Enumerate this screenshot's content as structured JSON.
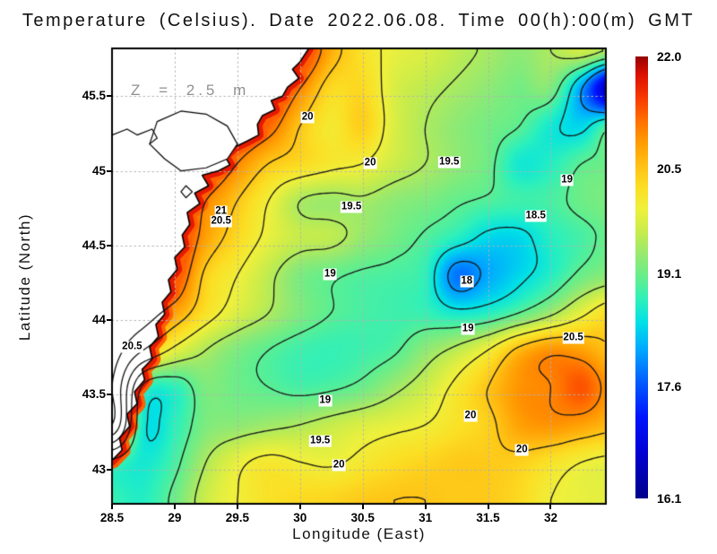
{
  "chart_data": {
    "type": "heatmap",
    "variant": "filled-contour-map-with-coastline",
    "title": "Temperature (Celsius). Date 2022.06.08. Time 00(h):00(m) GMT",
    "xlabel": "Longitude (East)",
    "ylabel": "Latitude (North)",
    "annotation": "Z = 2.5 m",
    "x_range": [
      28.5,
      32.44
    ],
    "y_range": [
      42.77,
      45.82
    ],
    "x_ticks": [
      {
        "v": 28.5,
        "label": "28.5"
      },
      {
        "v": 29,
        "label": "29"
      },
      {
        "v": 29.5,
        "label": "29.5"
      },
      {
        "v": 30,
        "label": "30"
      },
      {
        "v": 30.5,
        "label": "30.5"
      },
      {
        "v": 31,
        "label": "31"
      },
      {
        "v": 31.5,
        "label": "31.5"
      },
      {
        "v": 32,
        "label": "32"
      }
    ],
    "y_ticks": [
      {
        "v": 45.5,
        "label": "45.5"
      },
      {
        "v": 45,
        "label": "45"
      },
      {
        "v": 44.5,
        "label": "44.5"
      },
      {
        "v": 44,
        "label": "44"
      },
      {
        "v": 43.5,
        "label": "43.5"
      },
      {
        "v": 43,
        "label": "43"
      }
    ],
    "grid_lons": [
      28.5,
      28.75,
      29.0,
      29.25,
      29.5,
      29.75,
      30.0,
      30.25,
      30.5,
      30.75,
      31.0,
      31.25,
      31.5,
      31.75,
      32.0,
      32.25,
      32.5
    ],
    "grid_lats": [
      45.8,
      45.55,
      45.3,
      45.05,
      44.8,
      44.55,
      44.3,
      44.05,
      43.8,
      43.55,
      43.3,
      43.05,
      42.8
    ],
    "temperature_grid": [
      [
        21.5,
        21.5,
        21.5,
        21.5,
        21.5,
        21.6,
        21.6,
        20.7,
        20.2,
        19.9,
        19.8,
        19.6,
        19.45,
        19.3,
        19.5,
        19.7,
        19.4
      ],
      [
        21.5,
        21.5,
        21.5,
        21.5,
        21.5,
        21.6,
        21.0,
        20.3,
        20.3,
        19.8,
        19.6,
        19.45,
        19.3,
        19.15,
        19.2,
        18.0,
        16.3
      ],
      [
        21.5,
        21.5,
        21.5,
        21.5,
        21.5,
        21.2,
        20.5,
        20.1,
        20.4,
        19.8,
        19.5,
        19.3,
        19.15,
        19.0,
        18.6,
        18.4,
        19.0
      ],
      [
        21.5,
        21.5,
        21.5,
        21.5,
        21.0,
        20.5,
        20.3,
        20.1,
        20.0,
        19.7,
        19.5,
        19.3,
        19.1,
        18.6,
        18.7,
        19.0,
        19.1
      ],
      [
        21.5,
        21.5,
        21.5,
        21.0,
        20.5,
        20.0,
        19.5,
        19.4,
        19.45,
        19.3,
        19.2,
        19.05,
        18.95,
        18.85,
        18.9,
        19.1,
        19.2
      ],
      [
        21.5,
        21.5,
        21.6,
        20.8,
        20.3,
        19.9,
        19.65,
        19.6,
        19.35,
        19.15,
        18.95,
        18.7,
        18.4,
        18.4,
        18.7,
        18.9,
        19.1
      ],
      [
        21.5,
        21.3,
        21.4,
        20.4,
        20.0,
        19.6,
        19.2,
        19.05,
        18.95,
        18.9,
        18.75,
        17.8,
        18.1,
        18.4,
        18.7,
        19.1,
        19.3
      ],
      [
        21.3,
        21.2,
        20.8,
        20.2,
        19.8,
        19.5,
        19.2,
        19.0,
        18.9,
        18.85,
        18.8,
        18.6,
        18.7,
        19.0,
        19.4,
        19.9,
        20.3
      ],
      [
        21.2,
        20.5,
        19.9,
        19.5,
        19.2,
        19.0,
        18.85,
        18.8,
        18.85,
        18.95,
        19.3,
        19.6,
        20.0,
        20.6,
        20.9,
        20.8,
        20.5
      ],
      [
        21.0,
        18.9,
        18.75,
        19.2,
        19.1,
        19.0,
        18.9,
        18.95,
        19.1,
        19.4,
        19.7,
        20.1,
        20.5,
        20.9,
        21.0,
        21.3,
        20.8
      ],
      [
        21.0,
        18.6,
        18.75,
        19.2,
        19.3,
        19.4,
        19.5,
        19.65,
        19.8,
        19.9,
        20.0,
        20.2,
        20.4,
        20.8,
        20.9,
        20.8,
        20.6
      ],
      [
        18.9,
        18.6,
        18.9,
        19.5,
        19.9,
        20.1,
        20.0,
        19.95,
        20.1,
        20.25,
        20.35,
        20.45,
        20.45,
        20.4,
        20.2,
        20.0,
        19.9
      ],
      [
        18.8,
        18.7,
        19.1,
        19.7,
        20.0,
        20.2,
        20.3,
        20.35,
        20.45,
        20.5,
        20.5,
        20.45,
        20.45,
        20.3,
        20.0,
        19.9,
        19.9
      ]
    ],
    "contour_levels": [
      18,
      18.5,
      19,
      19.5,
      20,
      20.5,
      21
    ],
    "contour_labels": [
      {
        "text": "20",
        "lon": 30.06,
        "lat": 45.36
      },
      {
        "text": "21",
        "lon": 29.37,
        "lat": 44.73
      },
      {
        "text": "20.5",
        "lon": 29.37,
        "lat": 44.66
      },
      {
        "text": "20",
        "lon": 30.56,
        "lat": 45.05
      },
      {
        "text": "19.5",
        "lon": 31.19,
        "lat": 45.06
      },
      {
        "text": "19.5",
        "lon": 30.41,
        "lat": 44.76
      },
      {
        "text": "19",
        "lon": 32.13,
        "lat": 44.94
      },
      {
        "text": "18.5",
        "lon": 31.88,
        "lat": 44.7
      },
      {
        "text": "18",
        "lon": 31.33,
        "lat": 44.26
      },
      {
        "text": "19",
        "lon": 30.24,
        "lat": 44.31
      },
      {
        "text": "19",
        "lon": 31.34,
        "lat": 43.94
      },
      {
        "text": "20.5",
        "lon": 32.18,
        "lat": 43.88
      },
      {
        "text": "19",
        "lon": 30.2,
        "lat": 43.46
      },
      {
        "text": "20",
        "lon": 31.36,
        "lat": 43.36
      },
      {
        "text": "19.5",
        "lon": 30.16,
        "lat": 43.19
      },
      {
        "text": "20",
        "lon": 30.31,
        "lat": 43.03
      },
      {
        "text": "20",
        "lon": 31.77,
        "lat": 43.13
      },
      {
        "text": "20.5",
        "lon": 28.66,
        "lat": 43.82
      }
    ],
    "colormap": [
      [
        16.1,
        "#00008b"
      ],
      [
        16.7,
        "#0000d2"
      ],
      [
        17.2,
        "#0014ff"
      ],
      [
        17.7,
        "#0064ff"
      ],
      [
        18.1,
        "#00aaff"
      ],
      [
        18.45,
        "#00e0e6"
      ],
      [
        18.75,
        "#2cf0bc"
      ],
      [
        19.05,
        "#64ee8c"
      ],
      [
        19.35,
        "#96e970"
      ],
      [
        19.65,
        "#c6ec4c"
      ],
      [
        19.95,
        "#eef03c"
      ],
      [
        20.25,
        "#fbdf24"
      ],
      [
        20.55,
        "#ffc014"
      ],
      [
        20.85,
        "#ff9c02"
      ],
      [
        21.15,
        "#ff6e00"
      ],
      [
        21.45,
        "#f83800"
      ],
      [
        21.75,
        "#dd1000"
      ],
      [
        22.0,
        "#960000"
      ]
    ],
    "colorbar": {
      "min": 16.1,
      "max": 22.0,
      "ticks": [
        {
          "v": 22.0,
          "label": "22.0"
        },
        {
          "v": 20.5,
          "label": "20.5"
        },
        {
          "v": 19.1,
          "label": "19.1"
        },
        {
          "v": 17.6,
          "label": "17.6"
        },
        {
          "v": 16.1,
          "label": "16.1"
        }
      ]
    },
    "land": {
      "coast": [
        [
          30.07,
          45.82
        ],
        [
          30.0,
          45.73
        ],
        [
          29.94,
          45.68
        ],
        [
          29.99,
          45.62
        ],
        [
          29.9,
          45.56
        ],
        [
          29.86,
          45.5
        ],
        [
          29.77,
          45.47
        ],
        [
          29.8,
          45.41
        ],
        [
          29.7,
          45.37
        ],
        [
          29.66,
          45.31
        ],
        [
          29.67,
          45.24
        ],
        [
          29.58,
          45.2
        ],
        [
          29.48,
          45.16
        ],
        [
          29.4,
          45.1
        ],
        [
          29.44,
          45.04
        ],
        [
          29.35,
          45.0
        ],
        [
          29.22,
          44.97
        ],
        [
          29.27,
          44.9
        ],
        [
          29.16,
          44.85
        ],
        [
          29.2,
          44.78
        ],
        [
          29.1,
          44.72
        ],
        [
          29.12,
          44.64
        ],
        [
          29.06,
          44.57
        ],
        [
          29.08,
          44.49
        ],
        [
          29.0,
          44.42
        ],
        [
          29.02,
          44.34
        ],
        [
          28.95,
          44.27
        ],
        [
          28.97,
          44.19
        ],
        [
          28.9,
          44.12
        ],
        [
          28.92,
          44.04
        ],
        [
          28.85,
          43.97
        ],
        [
          28.87,
          43.89
        ],
        [
          28.8,
          43.82
        ],
        [
          28.82,
          43.74
        ],
        [
          28.74,
          43.67
        ],
        [
          28.76,
          43.6
        ],
        [
          28.68,
          43.52
        ],
        [
          28.7,
          43.44
        ],
        [
          28.62,
          43.37
        ],
        [
          28.64,
          43.29
        ],
        [
          28.56,
          43.21
        ],
        [
          28.58,
          43.13
        ],
        [
          28.5,
          43.06
        ]
      ],
      "lagoon": [
        [
          28.86,
          45.33
        ],
        [
          29.05,
          45.4
        ],
        [
          29.25,
          45.38
        ],
        [
          29.42,
          45.3
        ],
        [
          29.5,
          45.18
        ],
        [
          29.42,
          45.08
        ],
        [
          29.25,
          45.02
        ],
        [
          29.05,
          45.0
        ],
        [
          28.92,
          45.08
        ],
        [
          28.8,
          45.18
        ],
        [
          28.86,
          45.33
        ]
      ],
      "shore_line": [
        [
          28.5,
          45.24
        ],
        [
          28.62,
          45.28
        ],
        [
          28.7,
          45.24
        ],
        [
          28.82,
          45.28
        ],
        [
          28.86,
          45.22
        ],
        [
          28.8,
          45.18
        ]
      ],
      "island": [
        [
          29.05,
          44.86
        ],
        [
          29.09,
          44.9
        ],
        [
          29.14,
          44.86
        ],
        [
          29.09,
          44.82
        ]
      ]
    },
    "colors": {
      "background": "#ffffff",
      "land": "#ffffff",
      "coast_line": "#000000",
      "contour": "#151515",
      "grid_line": "#b2b2b2",
      "coastal_strip_inner": "#e51a00",
      "coastal_strip_outer": "#ff6000",
      "annotation_text": "#909090",
      "text": "#000000"
    }
  }
}
